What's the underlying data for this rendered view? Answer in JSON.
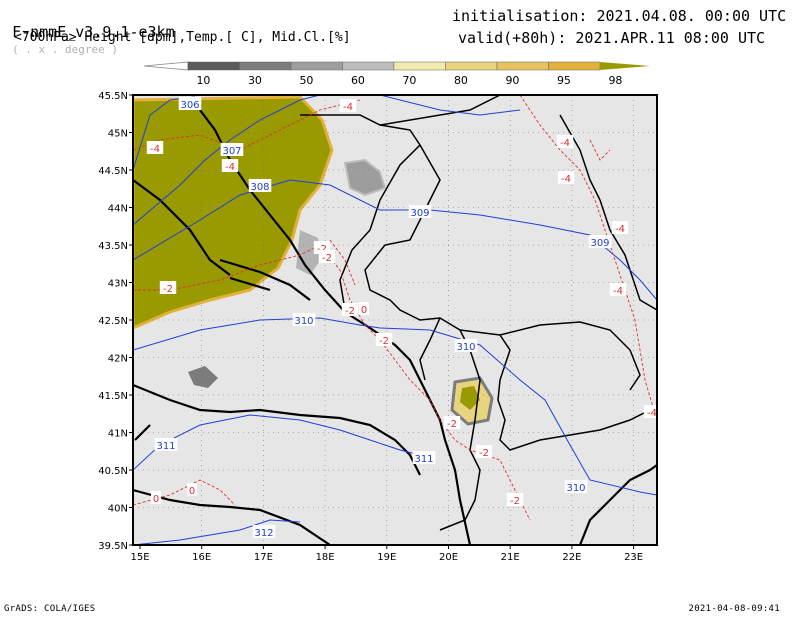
{
  "header": {
    "model": "F-nmmE_v3.9.1-e3km",
    "model_suffix": "( . x . degree )",
    "init": "initialisation: 2021.04.08. 00:00 UTC",
    "subtitle": "<700hPa> Height [dpm],Temp.[ C], Mid.Cl.[%]",
    "valid": "valid(+80h): 2021.APR.11 08:00 UTC"
  },
  "colorbar": {
    "labels": [
      "10",
      "30",
      "50",
      "60",
      "70",
      "80",
      "90",
      "95",
      "98"
    ],
    "colors": [
      "#5a5a5a",
      "#7c7c7c",
      "#9d9d9d",
      "#bdbdbd",
      "#f0eaae",
      "#e8d47f",
      "#e6c35e",
      "#e3b03a",
      "#999900"
    ]
  },
  "map": {
    "lat_labels": [
      "45.5N",
      "45N",
      "44.5N",
      "44N",
      "43.5N",
      "43N",
      "42.5N",
      "42N",
      "41.5N",
      "41N",
      "40.5N",
      "40N",
      "39.5N"
    ],
    "lon_labels": [
      "15E",
      "16E",
      "17E",
      "18E",
      "19E",
      "20E",
      "21E",
      "22E",
      "23E"
    ],
    "height_labels": [
      "306",
      "307",
      "308",
      "309",
      "309",
      "310",
      "310",
      "311",
      "311",
      "310",
      "312"
    ],
    "temp_labels": [
      "-4",
      "-4",
      "-4",
      "-4",
      "-4",
      "-4",
      "-4",
      "-2",
      "-2",
      "-2",
      "-2",
      "-2",
      "-2",
      "-2",
      "-2",
      "0",
      "0",
      "0",
      "-4"
    ],
    "colors": {
      "background": "#e6e6e6",
      "cloud_high": "#999900",
      "height_contour": "#1e40d8",
      "temp_contour": "#e03030",
      "coast": "#000000",
      "grid": "#777777"
    }
  },
  "footer": {
    "left": "GrADS: COLA/IGES",
    "right": "2021-04-08-09:41"
  }
}
